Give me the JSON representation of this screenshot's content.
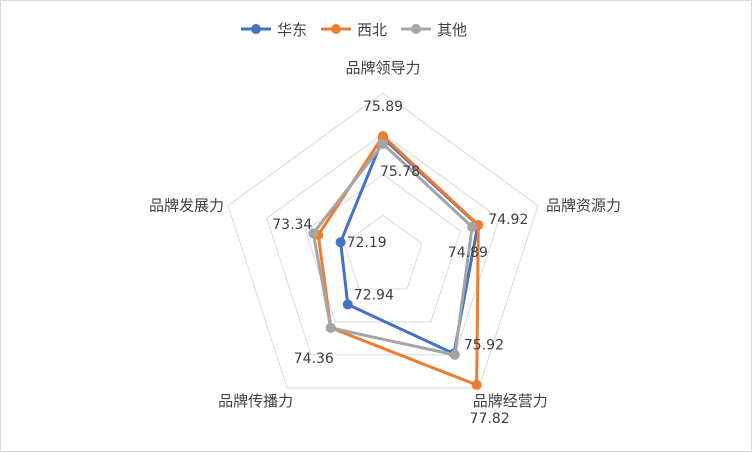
{
  "chart_data": {
    "type": "radar",
    "axes": [
      "品牌领导力",
      "品牌资源力",
      "品牌经营力",
      "品牌传播力",
      "品牌发展力"
    ],
    "series": [
      {
        "name": "华东",
        "color": "#4472c4",
        "values": [
          75.78,
          74.89,
          75.92,
          72.94,
          72.19
        ]
      },
      {
        "name": "西北",
        "color": "#ed7d31",
        "values": [
          75.89,
          74.92,
          77.82,
          74.36,
          73.34
        ]
      },
      {
        "name": "其他",
        "color": "#a5a5a5",
        "values": [
          75.5,
          74.6,
          76.0,
          74.36,
          73.6
        ]
      }
    ],
    "data_labels": [
      {
        "text": "75.89"
      },
      {
        "text": "75.78"
      },
      {
        "text": "74.92"
      },
      {
        "text": "74.89"
      },
      {
        "text": "75.92"
      },
      {
        "text": "77.82"
      },
      {
        "text": "72.94"
      },
      {
        "text": "74.36"
      },
      {
        "text": "72.19"
      },
      {
        "text": "73.34"
      }
    ],
    "range": [
      70,
      78
    ],
    "grid": true,
    "legend_position": "top"
  }
}
